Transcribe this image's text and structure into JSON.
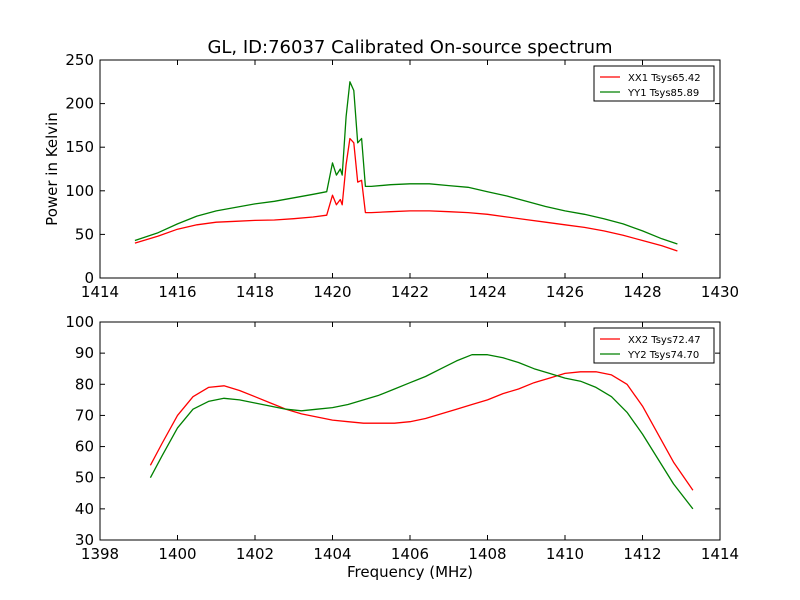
{
  "figure": {
    "title": "GL, ID:76037 Calibrated On-source spectrum",
    "xlabel": "Frequency (MHz)"
  },
  "chart_data": [
    {
      "type": "line",
      "title": "GL, ID:76037 Calibrated On-source spectrum",
      "xlabel": "",
      "ylabel": "Power in Kelvin",
      "xlim": [
        1414,
        1430
      ],
      "ylim": [
        0,
        250
      ],
      "xticks": [
        "1414",
        "1416",
        "1418",
        "1420",
        "1422",
        "1424",
        "1426",
        "1428",
        "1430"
      ],
      "yticks": [
        "0",
        "50",
        "100",
        "150",
        "200",
        "250"
      ],
      "grid": false,
      "legend_position": "top-right",
      "series": [
        {
          "name": "XX1 Tsys65.42",
          "color": "#ff0000",
          "x": [
            1414.9,
            1415.5,
            1416.0,
            1416.5,
            1417.0,
            1417.5,
            1418.0,
            1418.5,
            1419.0,
            1419.5,
            1419.85,
            1420.0,
            1420.1,
            1420.2,
            1420.25,
            1420.35,
            1420.45,
            1420.55,
            1420.65,
            1420.75,
            1420.85,
            1421.0,
            1421.5,
            1422.0,
            1422.5,
            1423.0,
            1423.5,
            1424.0,
            1424.5,
            1425.0,
            1425.5,
            1426.0,
            1426.5,
            1427.0,
            1427.5,
            1428.0,
            1428.5,
            1428.9
          ],
          "values": [
            40,
            48,
            56,
            61,
            64,
            65,
            66,
            66.5,
            68,
            70,
            72,
            95,
            84,
            90,
            84,
            130,
            160,
            155,
            110,
            112,
            75,
            75,
            76,
            77,
            77,
            76,
            75,
            73,
            70,
            67,
            64,
            61,
            58,
            54,
            49,
            43,
            37,
            31
          ]
        },
        {
          "name": "YY1 Tsys85.89",
          "color": "#008000",
          "x": [
            1414.9,
            1415.5,
            1416.0,
            1416.5,
            1417.0,
            1417.5,
            1418.0,
            1418.5,
            1419.0,
            1419.5,
            1419.85,
            1420.0,
            1420.1,
            1420.2,
            1420.25,
            1420.35,
            1420.45,
            1420.55,
            1420.65,
            1420.75,
            1420.85,
            1421.0,
            1421.5,
            1422.0,
            1422.5,
            1423.0,
            1423.5,
            1424.0,
            1424.5,
            1425.0,
            1425.5,
            1426.0,
            1426.5,
            1427.0,
            1427.5,
            1428.0,
            1428.5,
            1428.9
          ],
          "values": [
            43,
            52,
            62,
            71,
            77,
            81,
            85,
            88,
            92,
            96,
            99,
            132,
            118,
            125,
            118,
            185,
            225,
            215,
            155,
            160,
            105,
            105,
            107,
            108,
            108,
            106,
            104,
            99,
            94,
            88,
            82,
            77,
            73,
            68,
            62,
            54,
            45,
            39
          ]
        }
      ]
    },
    {
      "type": "line",
      "title": "",
      "xlabel": "Frequency (MHz)",
      "ylabel": "",
      "xlim": [
        1398,
        1414
      ],
      "ylim": [
        30,
        100
      ],
      "xticks": [
        "1398",
        "1400",
        "1402",
        "1404",
        "1406",
        "1408",
        "1410",
        "1412",
        "1414"
      ],
      "yticks": [
        "30",
        "40",
        "50",
        "60",
        "70",
        "80",
        "90",
        "100"
      ],
      "grid": false,
      "legend_position": "top-right",
      "series": [
        {
          "name": "XX2 Tsys72.47",
          "color": "#ff0000",
          "x": [
            1399.3,
            1399.6,
            1400.0,
            1400.4,
            1400.8,
            1401.2,
            1401.6,
            1402.0,
            1402.4,
            1402.8,
            1403.2,
            1403.6,
            1404.0,
            1404.4,
            1404.8,
            1405.2,
            1405.6,
            1406.0,
            1406.4,
            1406.8,
            1407.2,
            1407.6,
            1408.0,
            1408.4,
            1408.8,
            1409.2,
            1409.6,
            1410.0,
            1410.4,
            1410.8,
            1411.2,
            1411.6,
            1412.0,
            1412.4,
            1412.8,
            1413.3
          ],
          "values": [
            54,
            61,
            70,
            76,
            79,
            79.5,
            78,
            76,
            74,
            72,
            70.5,
            69.5,
            68.5,
            68,
            67.5,
            67.5,
            67.5,
            68,
            69,
            70.5,
            72,
            73.5,
            75,
            77,
            78.5,
            80.5,
            82,
            83.5,
            84,
            84,
            83,
            80,
            73,
            64,
            55,
            46
          ]
        },
        {
          "name": "YY2 Tsys74.70",
          "color": "#008000",
          "x": [
            1399.3,
            1399.6,
            1400.0,
            1400.4,
            1400.8,
            1401.2,
            1401.6,
            1402.0,
            1402.4,
            1402.8,
            1403.2,
            1403.6,
            1404.0,
            1404.4,
            1404.8,
            1405.2,
            1405.6,
            1406.0,
            1406.4,
            1406.8,
            1407.2,
            1407.6,
            1408.0,
            1408.4,
            1408.8,
            1409.2,
            1409.6,
            1410.0,
            1410.4,
            1410.8,
            1411.2,
            1411.6,
            1412.0,
            1412.4,
            1412.8,
            1413.3
          ],
          "values": [
            50,
            57,
            66,
            72,
            74.5,
            75.5,
            75,
            74,
            73,
            72,
            71.5,
            72,
            72.5,
            73.5,
            75,
            76.5,
            78.5,
            80.5,
            82.5,
            85,
            87.5,
            89.5,
            89.5,
            88.5,
            87,
            85,
            83.5,
            82,
            81,
            79,
            76,
            71,
            64,
            56,
            48,
            40
          ]
        }
      ]
    }
  ]
}
